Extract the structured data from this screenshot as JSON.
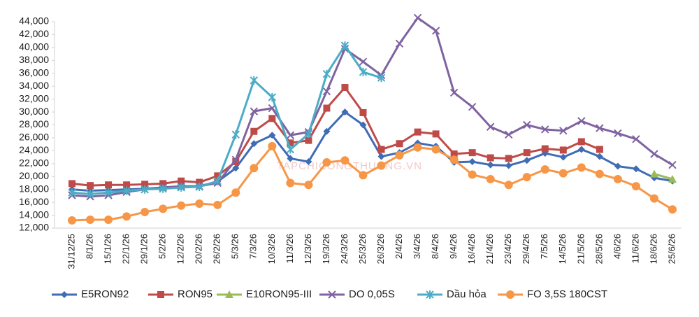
{
  "chart_data": {
    "type": "line",
    "watermark": "TAPCHICONGTHUONG.VN",
    "categories": [
      "31/12/25",
      "8/1/26",
      "15/1/26",
      "22/1/26",
      "29/1/26",
      "5/2/26",
      "12/2/26",
      "20/2/26",
      "26/2/26",
      "5/3/26",
      "7/3/26",
      "10/3/26",
      "11/3/26",
      "12/3/26",
      "19/3/26",
      "24/3/26",
      "25/3/26",
      "26/3/26",
      "2/4/26",
      "3/4/26",
      "8/4/26",
      "9/4/26",
      "16/4/26",
      "21/4/26",
      "23/4/26",
      "29/4/26",
      "7/5/26",
      "14/5/26",
      "21/5/26",
      "28/5/26",
      "4/6/26",
      "11/6/26",
      "18/6/26",
      "25/6/26"
    ],
    "ylim": [
      12000,
      44000
    ],
    "yticks": [
      {
        "value": 12000,
        "label": "12,000"
      },
      {
        "value": 14000,
        "label": "14,000"
      },
      {
        "value": 16000,
        "label": "16,000"
      },
      {
        "value": 18000,
        "label": "18,000"
      },
      {
        "value": 20000,
        "label": "20,000"
      },
      {
        "value": 22000,
        "label": "22,000"
      },
      {
        "value": 24000,
        "label": "24,000"
      },
      {
        "value": 26000,
        "label": "26,000"
      },
      {
        "value": 28000,
        "label": "28,000"
      },
      {
        "value": 30000,
        "label": "30,000"
      },
      {
        "value": 32000,
        "label": "32,000"
      },
      {
        "value": 34000,
        "label": "34,000"
      },
      {
        "value": 36000,
        "label": "36,000"
      },
      {
        "value": 38000,
        "label": "38,000"
      },
      {
        "value": 40000,
        "label": "40,000"
      },
      {
        "value": 42000,
        "label": "42,000"
      },
      {
        "value": 44000,
        "label": "44,000"
      }
    ],
    "grid": false,
    "legend": "bottom",
    "series": [
      {
        "name": "E5RON92",
        "color": "#3f6cb4",
        "marker": "diamond",
        "values": [
          18000,
          17800,
          17900,
          18000,
          18100,
          18300,
          18400,
          18500,
          19200,
          21300,
          25100,
          26400,
          22800,
          22300,
          27000,
          30000,
          28000,
          23100,
          23700,
          25200,
          24700,
          22200,
          22300,
          21800,
          21700,
          22500,
          23600,
          23000,
          24200,
          23100,
          21600,
          21200,
          19800,
          19300
        ]
      },
      {
        "name": "RON95",
        "color": "#be4b48",
        "marker": "square",
        "values": [
          18900,
          18600,
          18700,
          18700,
          18800,
          18900,
          19300,
          19100,
          20100,
          22300,
          27000,
          29000,
          25200,
          25600,
          30600,
          33800,
          29900,
          24200,
          25100,
          26900,
          26600,
          23500,
          23700,
          22900,
          22800,
          23700,
          24300,
          24100,
          25400,
          24200,
          null,
          null,
          null,
          null
        ]
      },
      {
        "name": "E10RON95-III",
        "color": "#9bbb59",
        "marker": "triangle",
        "values": [
          null,
          null,
          null,
          null,
          null,
          null,
          null,
          null,
          null,
          null,
          null,
          null,
          null,
          null,
          null,
          null,
          null,
          null,
          null,
          null,
          null,
          null,
          null,
          null,
          null,
          null,
          null,
          null,
          null,
          null,
          null,
          null,
          20400,
          19600
        ]
      },
      {
        "name": "DO 0,05S",
        "color": "#7f63a1",
        "marker": "x",
        "values": [
          17100,
          16900,
          17100,
          17600,
          18000,
          18300,
          18500,
          18500,
          19000,
          22600,
          30100,
          30600,
          26400,
          26900,
          33200,
          39800,
          37800,
          35700,
          40600,
          44600,
          42600,
          33000,
          30800,
          27700,
          26500,
          28000,
          27300,
          27100,
          28600,
          27500,
          26700,
          25800,
          23500,
          21800
        ]
      },
      {
        "name": "Dầu hỏa",
        "color": "#4bacc6",
        "marker": "star",
        "values": [
          17500,
          17300,
          17500,
          17800,
          18000,
          18100,
          18300,
          18400,
          19300,
          26500,
          34900,
          32300,
          24200,
          26600,
          35900,
          40300,
          36200,
          35300,
          null,
          null,
          null,
          null,
          null,
          null,
          null,
          null,
          null,
          null,
          null,
          null,
          null,
          null,
          null,
          null
        ]
      },
      {
        "name": "FO 3,5S 180CST",
        "color": "#f79646",
        "marker": "circle",
        "values": [
          13200,
          13300,
          13300,
          13800,
          14500,
          15000,
          15500,
          15800,
          15600,
          17500,
          21300,
          24700,
          19000,
          18700,
          22200,
          22500,
          20200,
          21700,
          23300,
          24500,
          24200,
          22600,
          20300,
          19600,
          18700,
          19900,
          21100,
          20500,
          21400,
          20400,
          19600,
          18500,
          16600,
          14900
        ]
      }
    ]
  }
}
